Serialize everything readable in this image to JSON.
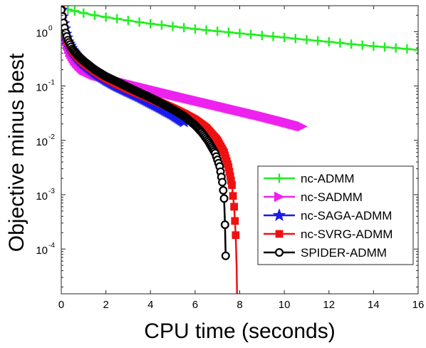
{
  "chart_data": {
    "type": "line",
    "xlabel": "CPU time (seconds)",
    "ylabel": "Objective minus best",
    "xlim": [
      0,
      16
    ],
    "ylim": [
      1.5e-05,
      3
    ],
    "yscale": "log",
    "grid": false,
    "legend_position": "lower-right",
    "x_ticks": [
      0,
      2,
      4,
      6,
      8,
      10,
      12,
      14,
      16
    ],
    "x_tick_labels": [
      "0",
      "2",
      "4",
      "6",
      "8",
      "10",
      "12",
      "14",
      "16"
    ],
    "y_ticks": [
      0.0001,
      0.001,
      0.01,
      0.1,
      1
    ],
    "y_tick_labels": [
      {
        "base": "10",
        "exp": "-4"
      },
      {
        "base": "10",
        "exp": "-3"
      },
      {
        "base": "10",
        "exp": "-2"
      },
      {
        "base": "10",
        "exp": "-1"
      },
      {
        "base": "10",
        "exp": "0"
      }
    ],
    "series": [
      {
        "name": "nc-ADMM",
        "color": "#22ee22",
        "marker": "plus",
        "x": [
          0,
          0.3,
          0.6,
          1,
          1.5,
          2,
          3,
          4,
          5,
          6,
          7,
          8,
          9,
          10,
          11,
          12,
          13,
          14,
          15,
          16
        ],
        "y": [
          2.7,
          2.55,
          2.4,
          2.2,
          2.0,
          1.85,
          1.6,
          1.4,
          1.25,
          1.12,
          1.02,
          0.93,
          0.85,
          0.78,
          0.71,
          0.65,
          0.59,
          0.54,
          0.5,
          0.46
        ]
      },
      {
        "name": "nc-SADMM",
        "color": "#ee22ee",
        "marker": "triangle-right",
        "x": [
          0,
          0.1,
          0.2,
          0.3,
          0.4,
          0.6,
          0.8,
          1,
          1.5,
          2,
          3,
          4,
          5,
          6,
          7,
          8,
          9,
          10,
          10.8
        ],
        "y": [
          2.5,
          1.3,
          0.8,
          0.55,
          0.42,
          0.3,
          0.24,
          0.2,
          0.16,
          0.14,
          0.11,
          0.087,
          0.069,
          0.055,
          0.044,
          0.035,
          0.028,
          0.022,
          0.018
        ]
      },
      {
        "name": "nc-SAGA-ADMM",
        "color": "#1a1aee",
        "marker": "star",
        "x": [
          0,
          0.1,
          0.2,
          0.3,
          0.5,
          0.75,
          1,
          1.5,
          2,
          2.5,
          3,
          3.5,
          4,
          4.5,
          5,
          5.5
        ],
        "y": [
          2.5,
          1.4,
          0.9,
          0.65,
          0.45,
          0.33,
          0.26,
          0.18,
          0.13,
          0.1,
          0.08,
          0.064,
          0.05,
          0.039,
          0.03,
          0.022
        ]
      },
      {
        "name": "nc-SVRG-ADMM",
        "color": "#ee1111",
        "marker": "square",
        "x": [
          0,
          0.1,
          0.2,
          0.3,
          0.5,
          0.75,
          1,
          1.5,
          2,
          2.5,
          3,
          3.5,
          4,
          4.5,
          5,
          5.5,
          6,
          6.5,
          7,
          7.3,
          7.5,
          7.65,
          7.75,
          7.82,
          7.86,
          7.88
        ],
        "y": [
          2.5,
          1.4,
          0.9,
          0.65,
          0.45,
          0.34,
          0.27,
          0.19,
          0.14,
          0.11,
          0.088,
          0.072,
          0.059,
          0.048,
          0.039,
          0.031,
          0.024,
          0.017,
          0.01,
          0.006,
          0.0032,
          0.0015,
          0.0006,
          0.00018,
          5e-05,
          1.5e-05
        ]
      },
      {
        "name": "SPIDER-ADMM",
        "color": "#000000",
        "marker": "circle",
        "x": [
          0,
          0.1,
          0.2,
          0.3,
          0.5,
          0.75,
          1,
          1.5,
          2,
          2.5,
          3,
          3.5,
          4,
          4.5,
          5,
          5.5,
          6,
          6.3,
          6.6,
          6.9,
          7.1,
          7.22,
          7.3,
          7.34,
          7.37
        ],
        "y": [
          2.5,
          1.45,
          0.95,
          0.7,
          0.48,
          0.36,
          0.29,
          0.2,
          0.15,
          0.12,
          0.095,
          0.076,
          0.061,
          0.048,
          0.037,
          0.028,
          0.019,
          0.014,
          0.0095,
          0.0058,
          0.0033,
          0.0017,
          0.00085,
          0.00028,
          7.5e-05
        ]
      }
    ]
  }
}
